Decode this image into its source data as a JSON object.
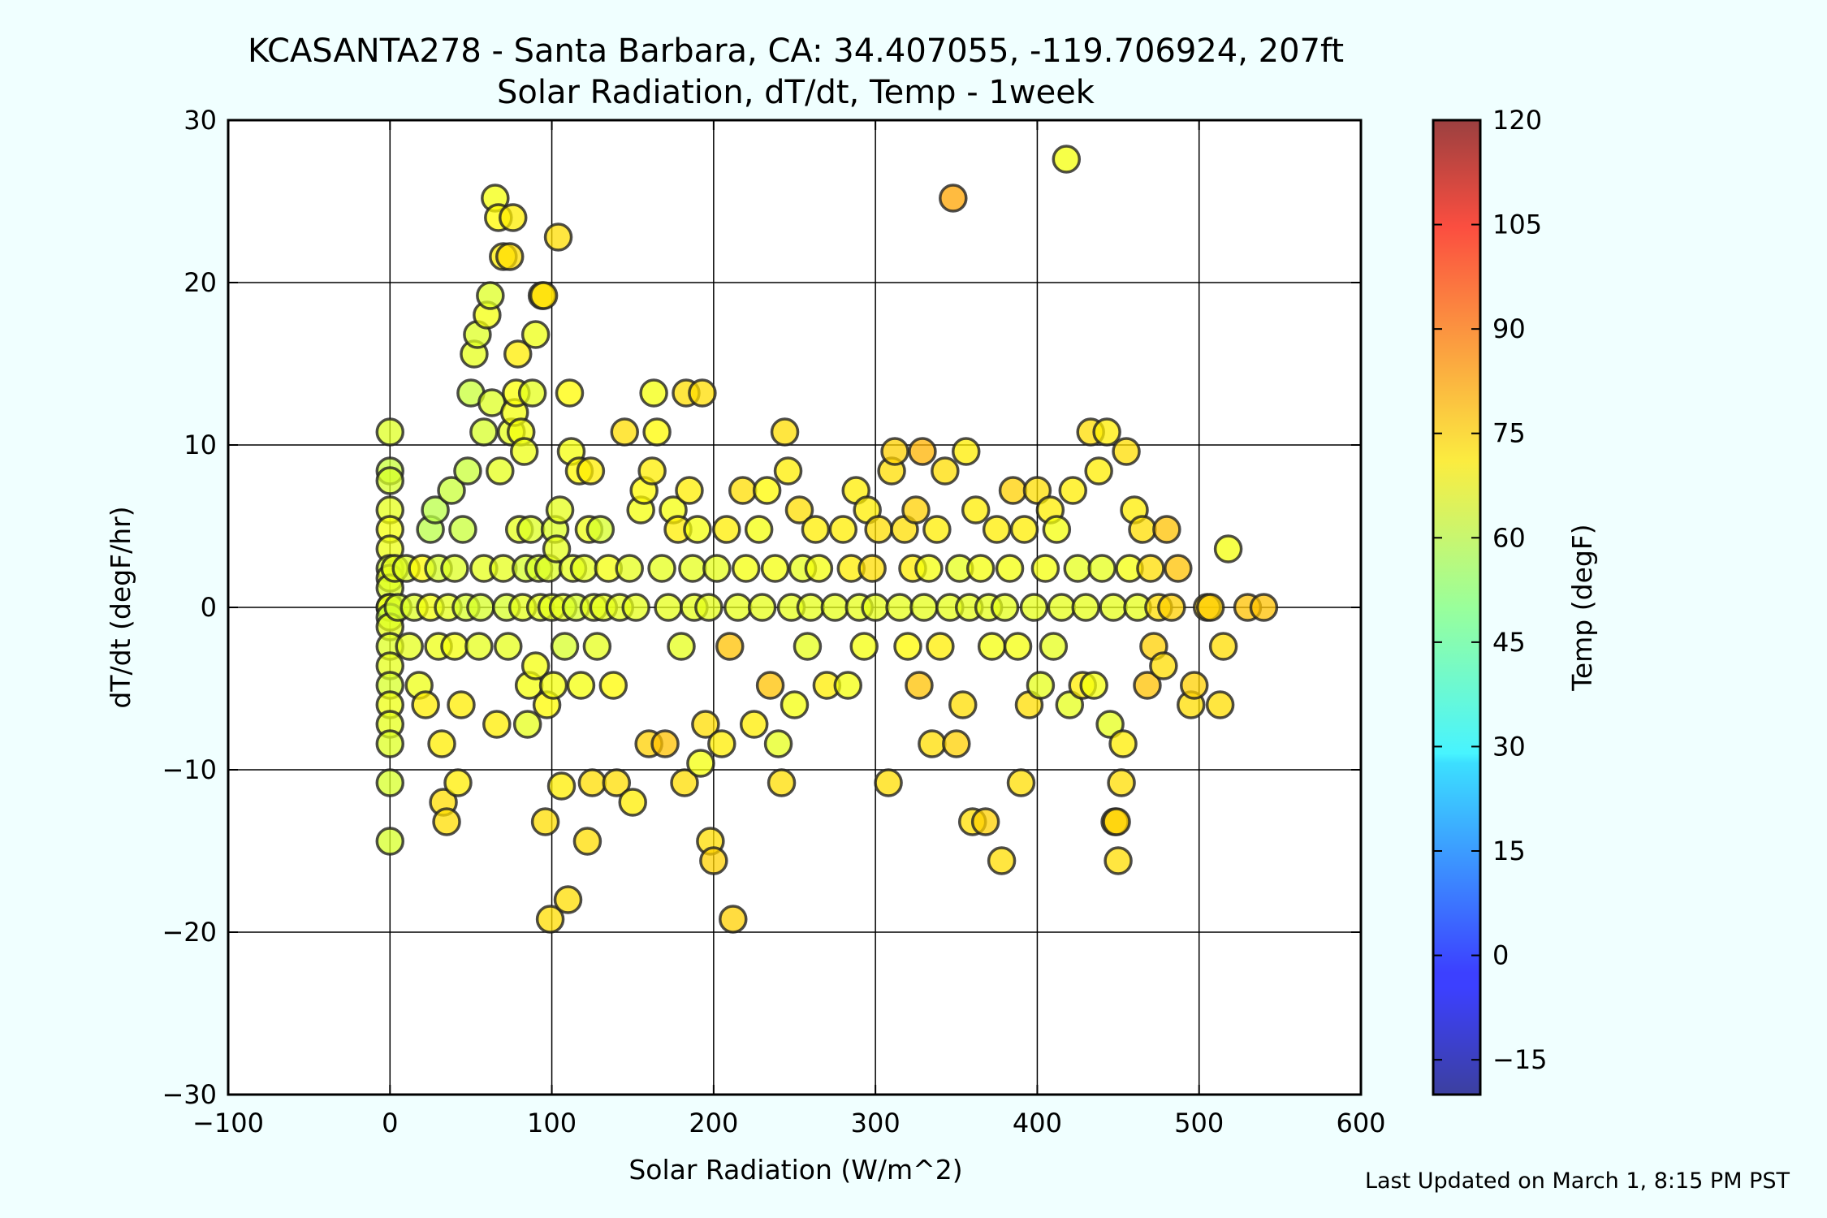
{
  "chart_data": {
    "type": "scatter",
    "title": "KCASANTA278 - Santa Barbara, CA: 34.407055, -119.706924, 207ft",
    "subtitle": "Solar Radiation, dT/dt, Temp - 1week",
    "xlabel": "Solar Radiation (W/m^2)",
    "ylabel": "dT/dt (degF/hr)",
    "xlim": [
      -100,
      600
    ],
    "ylim": [
      -30,
      30
    ],
    "x_ticks": [
      -100,
      0,
      100,
      200,
      300,
      400,
      500,
      600
    ],
    "y_ticks": [
      -30,
      -20,
      -10,
      0,
      10,
      20,
      30
    ],
    "x_tick_labels": [
      "−100",
      "0",
      "100",
      "200",
      "300",
      "400",
      "500",
      "600"
    ],
    "y_tick_labels": [
      "−30",
      "−20",
      "−10",
      "0",
      "10",
      "20",
      "30"
    ],
    "grid": true,
    "colorbar": {
      "label": "Temp (degF)",
      "min": -20,
      "max": 120,
      "ticks": [
        -15,
        0,
        15,
        30,
        45,
        60,
        75,
        90,
        105,
        120
      ],
      "tick_labels": [
        "−15",
        "0",
        "15",
        "30",
        "45",
        "60",
        "75",
        "90",
        "105",
        "120"
      ],
      "colormap": "jet"
    },
    "footer": "Last Updated on March 1, 8:15 PM PST",
    "points": [
      [
        0,
        10.8,
        63
      ],
      [
        0,
        8.4,
        60
      ],
      [
        0,
        7.8,
        62
      ],
      [
        0,
        6,
        64
      ],
      [
        0,
        4.8,
        66
      ],
      [
        0,
        3.6,
        65
      ],
      [
        0,
        2.4,
        62
      ],
      [
        0,
        1.8,
        64
      ],
      [
        0,
        1.2,
        63
      ],
      [
        0,
        0,
        62
      ],
      [
        0,
        0,
        65
      ],
      [
        0,
        -0.6,
        60
      ],
      [
        0,
        -1.2,
        64
      ],
      [
        0,
        -2.4,
        63
      ],
      [
        0,
        -3.6,
        64
      ],
      [
        0,
        -4.8,
        62
      ],
      [
        0,
        -6,
        65
      ],
      [
        0,
        -7.2,
        64
      ],
      [
        0,
        -8.4,
        63
      ],
      [
        0,
        -10.8,
        62
      ],
      [
        0,
        -14.4,
        62
      ],
      [
        3,
        2.4,
        64
      ],
      [
        5,
        0,
        62
      ],
      [
        10,
        2.4,
        63
      ],
      [
        12,
        -2.4,
        64
      ],
      [
        15,
        0,
        63
      ],
      [
        18,
        -4.8,
        65
      ],
      [
        20,
        2.4,
        68
      ],
      [
        22,
        -6,
        70
      ],
      [
        25,
        0,
        66
      ],
      [
        25,
        4.8,
        58
      ],
      [
        28,
        6,
        58
      ],
      [
        30,
        2.4,
        62
      ],
      [
        30,
        -2.4,
        65
      ],
      [
        32,
        -8.4,
        70
      ],
      [
        33,
        -12,
        72
      ],
      [
        35,
        -13.2,
        72
      ],
      [
        36,
        0,
        64
      ],
      [
        38,
        7.2,
        60
      ],
      [
        40,
        2.4,
        63
      ],
      [
        40,
        -2.4,
        66
      ],
      [
        42,
        -10.8,
        70
      ],
      [
        44,
        -6,
        70
      ],
      [
        45,
        4.8,
        60
      ],
      [
        47,
        0,
        62
      ],
      [
        48,
        8.4,
        60
      ],
      [
        50,
        13.2,
        60
      ],
      [
        52,
        15.6,
        64
      ],
      [
        54,
        16.8,
        63
      ],
      [
        55,
        -2.4,
        64
      ],
      [
        56,
        0,
        62
      ],
      [
        58,
        2.4,
        64
      ],
      [
        58,
        10.8,
        62
      ],
      [
        60,
        18,
        66
      ],
      [
        62,
        19.2,
        63
      ],
      [
        63,
        12.6,
        63
      ],
      [
        65,
        25.2,
        66
      ],
      [
        66,
        -7.2,
        70
      ],
      [
        67,
        24,
        68
      ],
      [
        68,
        8.4,
        64
      ],
      [
        70,
        21.6,
        70
      ],
      [
        70,
        2.4,
        64
      ],
      [
        72,
        0,
        62
      ],
      [
        73,
        -2.4,
        64
      ],
      [
        74,
        21.6,
        72
      ],
      [
        75,
        10.8,
        64
      ],
      [
        76,
        24,
        70
      ],
      [
        77,
        12,
        66
      ],
      [
        78,
        13.2,
        67
      ],
      [
        79,
        15.6,
        70
      ],
      [
        80,
        4.8,
        64
      ],
      [
        81,
        10.8,
        66
      ],
      [
        82,
        0,
        64
      ],
      [
        83,
        9.6,
        65
      ],
      [
        84,
        2.4,
        62
      ],
      [
        85,
        -7.2,
        64
      ],
      [
        86,
        -4.8,
        66
      ],
      [
        87,
        4.8,
        63
      ],
      [
        88,
        13.2,
        64
      ],
      [
        90,
        16.8,
        65
      ],
      [
        90,
        -3.6,
        66
      ],
      [
        92,
        2.4,
        62
      ],
      [
        93,
        0,
        64
      ],
      [
        94,
        19.2,
        70
      ],
      [
        95,
        19.2,
        72
      ],
      [
        96,
        -13.2,
        72
      ],
      [
        97,
        -6,
        68
      ],
      [
        98,
        2.4,
        63
      ],
      [
        99,
        -19.2,
        72
      ],
      [
        100,
        0,
        64
      ],
      [
        101,
        -4.8,
        66
      ],
      [
        102,
        4.8,
        63
      ],
      [
        103,
        3.6,
        64
      ],
      [
        104,
        22.8,
        72
      ],
      [
        105,
        6,
        64
      ],
      [
        106,
        -11,
        70
      ],
      [
        107,
        0,
        64
      ],
      [
        108,
        -2.4,
        62
      ],
      [
        110,
        -18,
        72
      ],
      [
        111,
        13.2,
        68
      ],
      [
        112,
        9.6,
        66
      ],
      [
        113,
        2.4,
        64
      ],
      [
        115,
        0,
        62
      ],
      [
        117,
        8.4,
        68
      ],
      [
        118,
        -4.8,
        66
      ],
      [
        120,
        2.4,
        64
      ],
      [
        122,
        -14.4,
        72
      ],
      [
        123,
        4.8,
        65
      ],
      [
        124,
        8.4,
        70
      ],
      [
        125,
        -10.8,
        72
      ],
      [
        126,
        0,
        64
      ],
      [
        128,
        -2.4,
        64
      ],
      [
        130,
        4.8,
        62
      ],
      [
        132,
        0,
        64
      ],
      [
        135,
        2.4,
        66
      ],
      [
        138,
        -4.8,
        68
      ],
      [
        140,
        -10.8,
        72
      ],
      [
        142,
        0,
        64
      ],
      [
        145,
        10.8,
        72
      ],
      [
        148,
        2.4,
        64
      ],
      [
        150,
        -12,
        70
      ],
      [
        152,
        0,
        64
      ],
      [
        155,
        6,
        66
      ],
      [
        157,
        7.2,
        68
      ],
      [
        160,
        -8.4,
        74
      ],
      [
        162,
        8.4,
        70
      ],
      [
        163,
        13.2,
        66
      ],
      [
        165,
        10.8,
        68
      ],
      [
        168,
        2.4,
        64
      ],
      [
        170,
        -8.4,
        76
      ],
      [
        172,
        0,
        64
      ],
      [
        175,
        6,
        66
      ],
      [
        178,
        4.8,
        70
      ],
      [
        180,
        -2.4,
        64
      ],
      [
        182,
        -10.8,
        72
      ],
      [
        183,
        13.2,
        72
      ],
      [
        185,
        7.2,
        70
      ],
      [
        187,
        2.4,
        64
      ],
      [
        188,
        0,
        64
      ],
      [
        190,
        4.8,
        66
      ],
      [
        192,
        -9.6,
        66
      ],
      [
        193,
        13.2,
        72
      ],
      [
        195,
        -7.2,
        72
      ],
      [
        197,
        0,
        64
      ],
      [
        198,
        -14.4,
        72
      ],
      [
        200,
        -15.6,
        74
      ],
      [
        202,
        2.4,
        64
      ],
      [
        205,
        -8.4,
        70
      ],
      [
        208,
        4.8,
        70
      ],
      [
        210,
        -2.4,
        76
      ],
      [
        212,
        -19.2,
        74
      ],
      [
        215,
        0,
        64
      ],
      [
        218,
        7.2,
        72
      ],
      [
        220,
        2.4,
        66
      ],
      [
        225,
        -7.2,
        70
      ],
      [
        228,
        4.8,
        66
      ],
      [
        230,
        0,
        64
      ],
      [
        233,
        7.2,
        68
      ],
      [
        235,
        -4.8,
        76
      ],
      [
        238,
        2.4,
        66
      ],
      [
        240,
        -8.4,
        64
      ],
      [
        242,
        -10.8,
        72
      ],
      [
        244,
        10.8,
        72
      ],
      [
        246,
        8.4,
        70
      ],
      [
        248,
        0,
        64
      ],
      [
        250,
        -6,
        66
      ],
      [
        253,
        6,
        72
      ],
      [
        255,
        2.4,
        64
      ],
      [
        258,
        -2.4,
        64
      ],
      [
        260,
        0,
        64
      ],
      [
        263,
        4.8,
        70
      ],
      [
        265,
        2.4,
        66
      ],
      [
        270,
        -4.8,
        70
      ],
      [
        275,
        0,
        64
      ],
      [
        280,
        4.8,
        70
      ],
      [
        283,
        -4.8,
        66
      ],
      [
        285,
        2.4,
        70
      ],
      [
        288,
        7.2,
        70
      ],
      [
        290,
        0,
        64
      ],
      [
        293,
        -2.4,
        66
      ],
      [
        295,
        6,
        70
      ],
      [
        298,
        2.4,
        72
      ],
      [
        300,
        0,
        64
      ],
      [
        302,
        4.8,
        72
      ],
      [
        308,
        -10.8,
        72
      ],
      [
        310,
        8.4,
        72
      ],
      [
        312,
        9.6,
        74
      ],
      [
        315,
        0,
        64
      ],
      [
        318,
        4.8,
        72
      ],
      [
        320,
        -2.4,
        68
      ],
      [
        323,
        2.4,
        70
      ],
      [
        325,
        6,
        74
      ],
      [
        327,
        -4.8,
        76
      ],
      [
        329,
        9.6,
        78
      ],
      [
        330,
        0,
        64
      ],
      [
        333,
        2.4,
        66
      ],
      [
        335,
        -8.4,
        72
      ],
      [
        338,
        4.8,
        70
      ],
      [
        340,
        -2.4,
        70
      ],
      [
        343,
        8.4,
        72
      ],
      [
        346,
        0,
        64
      ],
      [
        348,
        25.2,
        80
      ],
      [
        350,
        -8.4,
        74
      ],
      [
        352,
        2.4,
        64
      ],
      [
        354,
        -6,
        72
      ],
      [
        356,
        9.6,
        70
      ],
      [
        358,
        0,
        64
      ],
      [
        360,
        -13.2,
        72
      ],
      [
        362,
        6,
        70
      ],
      [
        365,
        2.4,
        66
      ],
      [
        368,
        -13.2,
        74
      ],
      [
        370,
        0,
        64
      ],
      [
        372,
        -2.4,
        66
      ],
      [
        375,
        4.8,
        70
      ],
      [
        378,
        -15.6,
        72
      ],
      [
        380,
        0,
        64
      ],
      [
        383,
        2.4,
        66
      ],
      [
        385,
        7.2,
        74
      ],
      [
        388,
        -2.4,
        66
      ],
      [
        390,
        -10.8,
        72
      ],
      [
        392,
        4.8,
        70
      ],
      [
        395,
        -6,
        72
      ],
      [
        398,
        0,
        64
      ],
      [
        400,
        7.2,
        72
      ],
      [
        402,
        -4.8,
        64
      ],
      [
        405,
        2.4,
        66
      ],
      [
        408,
        6,
        70
      ],
      [
        410,
        -2.4,
        64
      ],
      [
        412,
        4.8,
        66
      ],
      [
        415,
        0,
        64
      ],
      [
        418,
        27.6,
        66
      ],
      [
        420,
        -6,
        64
      ],
      [
        422,
        7.2,
        70
      ],
      [
        425,
        2.4,
        64
      ],
      [
        428,
        -4.8,
        70
      ],
      [
        430,
        0,
        64
      ],
      [
        433,
        10.8,
        72
      ],
      [
        435,
        -4.8,
        66
      ],
      [
        438,
        8.4,
        70
      ],
      [
        440,
        2.4,
        64
      ],
      [
        443,
        10.8,
        70
      ],
      [
        445,
        -7.2,
        64
      ],
      [
        447,
        0,
        64
      ],
      [
        448,
        -13.2,
        72
      ],
      [
        449,
        -13.2,
        74
      ],
      [
        450,
        -15.6,
        72
      ],
      [
        452,
        -10.8,
        72
      ],
      [
        453,
        -8.4,
        70
      ],
      [
        455,
        9.6,
        72
      ],
      [
        457,
        2.4,
        66
      ],
      [
        460,
        6,
        70
      ],
      [
        462,
        0,
        64
      ],
      [
        465,
        4.8,
        72
      ],
      [
        468,
        -4.8,
        76
      ],
      [
        470,
        2.4,
        72
      ],
      [
        472,
        -2.4,
        74
      ],
      [
        475,
        0,
        72
      ],
      [
        478,
        -3.6,
        72
      ],
      [
        480,
        4.8,
        76
      ],
      [
        483,
        0,
        74
      ],
      [
        487,
        2.4,
        76
      ],
      [
        495,
        -6,
        72
      ],
      [
        497,
        -4.8,
        74
      ],
      [
        505,
        0,
        74
      ],
      [
        507,
        0,
        74
      ],
      [
        513,
        -6,
        72
      ],
      [
        515,
        -2.4,
        72
      ],
      [
        518,
        3.6,
        66
      ],
      [
        530,
        0,
        76
      ],
      [
        540,
        0,
        76
      ]
    ]
  }
}
